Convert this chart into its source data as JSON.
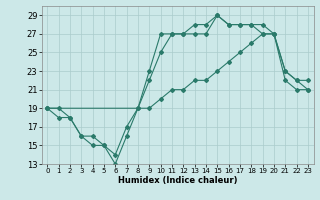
{
  "title": "",
  "xlabel": "Humidex (Indice chaleur)",
  "background_color": "#cce8e8",
  "grid_color": "#aacccc",
  "line_color": "#2a7a6a",
  "xlim": [
    -0.5,
    23.5
  ],
  "ylim": [
    13,
    30
  ],
  "yticks": [
    13,
    15,
    17,
    19,
    21,
    23,
    25,
    27,
    29
  ],
  "xticks": [
    0,
    1,
    2,
    3,
    4,
    5,
    6,
    7,
    8,
    9,
    10,
    11,
    12,
    13,
    14,
    15,
    16,
    17,
    18,
    19,
    20,
    21,
    22,
    23
  ],
  "series1_x": [
    0,
    1,
    2,
    3,
    4,
    5,
    6,
    7,
    8,
    9,
    10,
    11,
    12,
    13,
    14,
    15,
    16,
    17,
    18,
    19,
    20,
    21,
    22,
    23
  ],
  "series1_y": [
    19,
    19,
    18,
    16,
    16,
    15,
    14,
    17,
    19,
    23,
    27,
    27,
    27,
    28,
    28,
    29,
    28,
    28,
    28,
    28,
    27,
    23,
    22,
    22
  ],
  "series2_x": [
    0,
    1,
    2,
    3,
    4,
    5,
    6,
    7,
    8,
    9,
    10,
    11,
    12,
    13,
    14,
    15,
    16,
    17,
    18,
    19,
    20,
    21,
    22,
    23
  ],
  "series2_y": [
    19,
    18,
    18,
    16,
    15,
    15,
    13,
    16,
    19,
    22,
    25,
    27,
    27,
    27,
    27,
    29,
    28,
    28,
    28,
    27,
    27,
    23,
    22,
    21
  ],
  "series3_x": [
    0,
    9,
    10,
    11,
    12,
    13,
    14,
    15,
    16,
    17,
    18,
    19,
    20,
    21,
    22,
    23
  ],
  "series3_y": [
    19,
    19,
    20,
    21,
    21,
    22,
    22,
    23,
    24,
    25,
    26,
    27,
    27,
    22,
    21,
    21
  ]
}
